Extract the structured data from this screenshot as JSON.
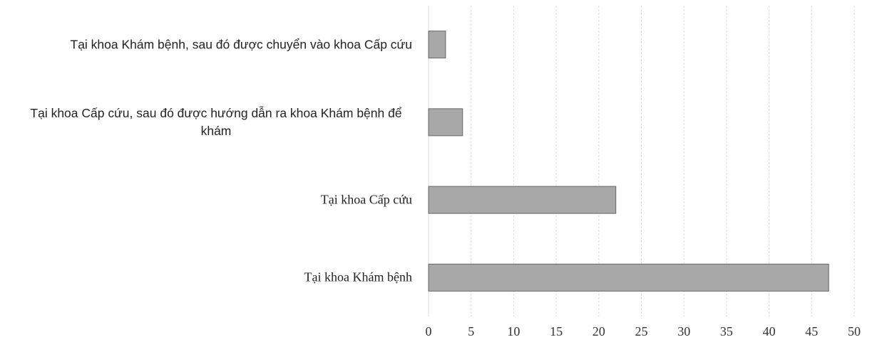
{
  "chart_data": {
    "type": "hbar",
    "categories": [
      "Tại khoa Khám bệnh, sau đó được chuyển vào khoa Cấp cứu",
      "Tại khoa Cấp cứu, sau đó được hướng dẫn ra khoa Khám bệnh để khám",
      "Tại khoa Cấp cứu",
      "Tại khoa Khám bệnh"
    ],
    "values": [
      2,
      4,
      22,
      47
    ],
    "color": "#a8a8a8",
    "xlim": [
      0,
      50
    ],
    "xticks": [
      0,
      5,
      10,
      15,
      20,
      25,
      30,
      35,
      40,
      45,
      50
    ],
    "grid": true
  }
}
